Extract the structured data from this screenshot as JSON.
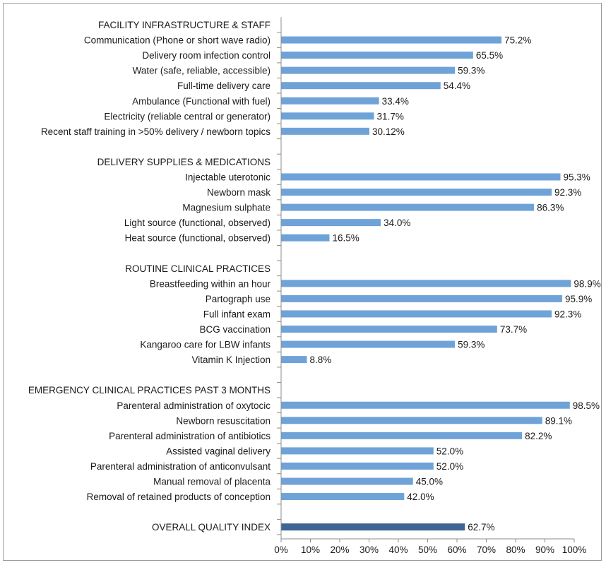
{
  "chart_data": {
    "type": "bar",
    "orientation": "horizontal",
    "xlim": [
      0,
      100
    ],
    "x_ticks": [
      "0%",
      "10%",
      "20%",
      "30%",
      "40%",
      "50%",
      "60%",
      "70%",
      "80%",
      "90%",
      "100%"
    ],
    "grid": false,
    "legend": "none",
    "colors": {
      "bar": "#6fa3d8",
      "overall": "#3d6595"
    },
    "sections": [
      {
        "title": "FACILITY INFRASTRUCTURE & STAFF",
        "items": [
          {
            "label": "Communication (Phone or short wave radio)",
            "value": 75.2,
            "value_label": "75.2%"
          },
          {
            "label": "Delivery room infection control",
            "value": 65.5,
            "value_label": "65.5%"
          },
          {
            "label": "Water (safe, reliable, accessible)",
            "value": 59.3,
            "value_label": "59.3%"
          },
          {
            "label": "Full-time delivery care",
            "value": 54.4,
            "value_label": "54.4%"
          },
          {
            "label": "Ambulance (Functional with fuel)",
            "value": 33.4,
            "value_label": "33.4%"
          },
          {
            "label": "Electricity (reliable central or generator)",
            "value": 31.7,
            "value_label": "31.7%"
          },
          {
            "label": "Recent staff training in >50% delivery / newborn topics",
            "value": 30.12,
            "value_label": "30.12%"
          }
        ]
      },
      {
        "title": "DELIVERY SUPPLIES & MEDICATIONS",
        "items": [
          {
            "label": "Injectable uterotonic",
            "value": 95.3,
            "value_label": "95.3%"
          },
          {
            "label": "Newborn mask",
            "value": 92.3,
            "value_label": "92.3%"
          },
          {
            "label": "Magnesium sulphate",
            "value": 86.3,
            "value_label": "86.3%"
          },
          {
            "label": "Light source (functional, observed)",
            "value": 34.0,
            "value_label": "34.0%"
          },
          {
            "label": "Heat source (functional, observed)",
            "value": 16.5,
            "value_label": "16.5%"
          }
        ]
      },
      {
        "title": "ROUTINE CLINICAL PRACTICES",
        "items": [
          {
            "label": "Breastfeeding within an hour",
            "value": 98.9,
            "value_label": "98.9%"
          },
          {
            "label": "Partograph use",
            "value": 95.9,
            "value_label": "95.9%"
          },
          {
            "label": "Full infant exam",
            "value": 92.3,
            "value_label": "92.3%"
          },
          {
            "label": "BCG vaccination",
            "value": 73.7,
            "value_label": "73.7%"
          },
          {
            "label": "Kangaroo care for LBW infants",
            "value": 59.3,
            "value_label": "59.3%"
          },
          {
            "label": "Vitamin K Injection",
            "value": 8.8,
            "value_label": "8.8%"
          }
        ]
      },
      {
        "title": "EMERGENCY CLINICAL PRACTICES PAST 3 MONTHS",
        "items": [
          {
            "label": "Parenteral administration of oxytocic",
            "value": 98.5,
            "value_label": "98.5%"
          },
          {
            "label": "Newborn resuscitation",
            "value": 89.1,
            "value_label": "89.1%"
          },
          {
            "label": "Parenteral administration of antibiotics",
            "value": 82.2,
            "value_label": "82.2%"
          },
          {
            "label": "Assisted vaginal delivery",
            "value": 52.0,
            "value_label": "52.0%"
          },
          {
            "label": "Parenteral administration of anticonvulsant",
            "value": 52.0,
            "value_label": "52.0%"
          },
          {
            "label": "Manual removal of placenta",
            "value": 45.0,
            "value_label": "45.0%"
          },
          {
            "label": "Removal of retained products of conception",
            "value": 42.0,
            "value_label": "42.0%"
          }
        ]
      }
    ],
    "overall": {
      "label": "OVERALL QUALITY INDEX",
      "value": 62.7,
      "value_label": "62.7%"
    }
  }
}
